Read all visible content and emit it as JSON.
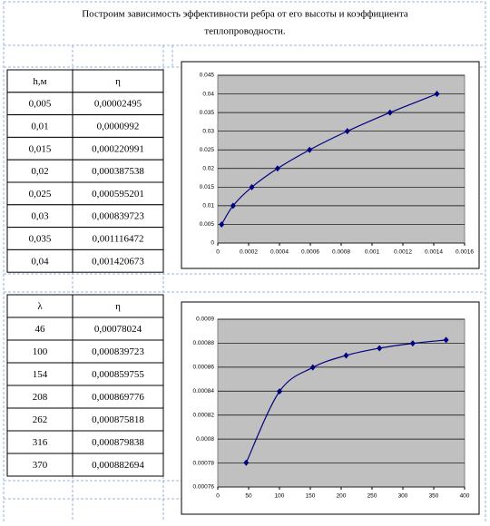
{
  "header": {
    "title_lines": [
      "Построим зависимость эффективности ребра от его высоты и коэффициента",
      "теплопроводности."
    ]
  },
  "table1": {
    "header": [
      "h,м",
      "η"
    ],
    "rows": [
      [
        "0,005",
        "0,00002495"
      ],
      [
        "0,01",
        "0,0000992"
      ],
      [
        "0,015",
        "0,000220991"
      ],
      [
        "0,02",
        "0,000387538"
      ],
      [
        "0,025",
        "0,000595201"
      ],
      [
        "0,03",
        "0,000839723"
      ],
      [
        "0,035",
        "0,001116472"
      ],
      [
        "0,04",
        "0,001420673"
      ]
    ]
  },
  "table2": {
    "header": [
      "λ",
      "η"
    ],
    "rows": [
      [
        "46",
        "0,00078024"
      ],
      [
        "100",
        "0,000839723"
      ],
      [
        "154",
        "0,000859755"
      ],
      [
        "208",
        "0,000869776"
      ],
      [
        "262",
        "0,000875818"
      ],
      [
        "316",
        "0,000879838"
      ],
      [
        "370",
        "0,000882694"
      ]
    ]
  },
  "chart_data": [
    {
      "type": "line",
      "x": [
        2.495e-05,
        9.92e-05,
        0.000220991,
        0.000387538,
        0.000595201,
        0.000839723,
        0.001116472,
        0.001420673
      ],
      "series": [
        {
          "color": "#000080",
          "values": [
            0.005,
            0.01,
            0.015,
            0.02,
            0.025,
            0.03,
            0.035,
            0.04
          ]
        }
      ],
      "xlim": [
        0,
        0.0016
      ],
      "xticks": [
        0,
        0.0002,
        0.0004,
        0.0006,
        0.0008,
        0.001,
        0.0012,
        0.0014,
        0.0016
      ],
      "ylim": [
        0,
        0.045
      ],
      "yticks": [
        0,
        0.005,
        0.01,
        0.015,
        0.02,
        0.025,
        0.03,
        0.035,
        0.04,
        0.045
      ],
      "grid": true
    },
    {
      "type": "line",
      "x": [
        46,
        100,
        154,
        208,
        262,
        316,
        370
      ],
      "series": [
        {
          "color": "#000080",
          "values": [
            0.00078024,
            0.000839723,
            0.000859755,
            0.000869776,
            0.000875818,
            0.000879838,
            0.000882694
          ]
        }
      ],
      "xlim": [
        0,
        400
      ],
      "xticks": [
        0,
        50,
        100,
        150,
        200,
        250,
        300,
        350,
        400
      ],
      "ylim": [
        0.00076,
        0.0009
      ],
      "yticks": [
        0.00076,
        0.00078,
        0.0008,
        0.00082,
        0.00084,
        0.00086,
        0.00088,
        0.0009
      ],
      "grid": true
    }
  ]
}
